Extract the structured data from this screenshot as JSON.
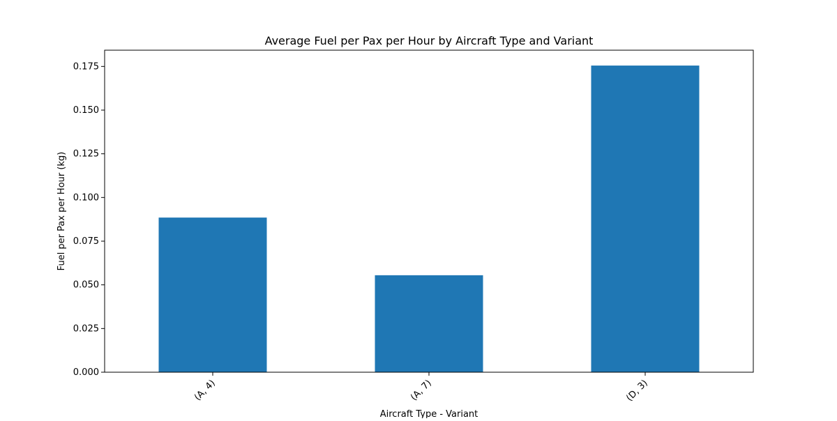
{
  "chart_data": {
    "type": "bar",
    "title": "Average Fuel per Pax per Hour by Aircraft Type and Variant",
    "xlabel": "Aircraft Type - Variant",
    "ylabel": "Fuel per Pax per Hour (kg)",
    "categories": [
      "(A, 4)",
      "(A, 7)",
      "(D, 3)"
    ],
    "values": [
      0.0885,
      0.0555,
      0.1755
    ],
    "ylim": [
      0,
      0.1843
    ],
    "yticks": [
      0.0,
      0.025,
      0.05,
      0.075,
      0.1,
      0.125,
      0.15,
      0.175
    ],
    "ytick_labels": [
      "0.000",
      "0.025",
      "0.050",
      "0.075",
      "0.100",
      "0.125",
      "0.150",
      "0.175"
    ],
    "grid": false,
    "legend": false,
    "bar_color": "#1f77b4"
  }
}
